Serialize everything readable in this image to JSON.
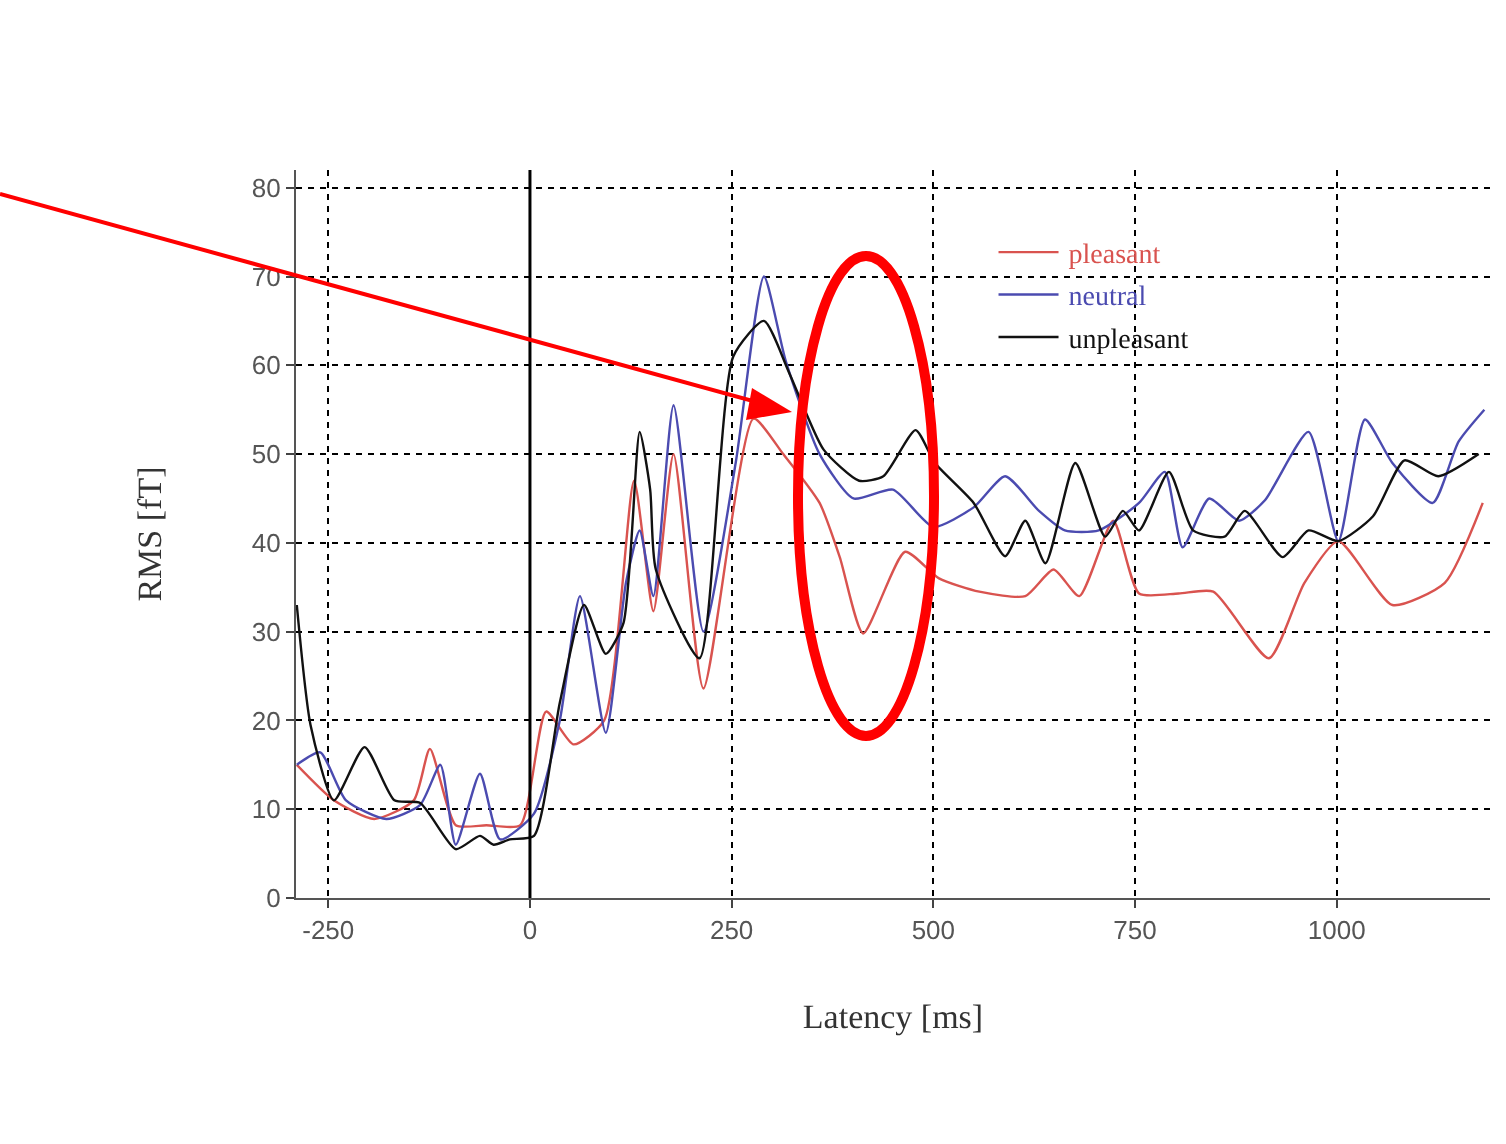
{
  "chart_data": {
    "type": "line",
    "xlabel": "Latency [ms]",
    "ylabel": "RMS [fT]",
    "xlim": [
      -290,
      1190
    ],
    "ylim": [
      0,
      82
    ],
    "xticks": [
      -250,
      0,
      250,
      500,
      750,
      1000
    ],
    "yticks": [
      0,
      10,
      20,
      30,
      40,
      50,
      60,
      70,
      80
    ],
    "grid": true,
    "legend": "top right",
    "line_style": "solid",
    "marker": "none",
    "ref_lines": [
      {
        "axis": "x",
        "value": 0,
        "color": "#000000"
      }
    ],
    "series": [
      {
        "name": "pleasant",
        "color": "#d9534f",
        "x": [
          -289,
          -243,
          -193,
          -144,
          -124,
          -92,
          -54,
          -12,
          20,
          54,
          92,
          129,
          153,
          178,
          215,
          277,
          314,
          359,
          384,
          413,
          465,
          507,
          557,
          614,
          649,
          681,
          723,
          755,
          804,
          847,
          916,
          960,
          1002,
          1069,
          1134,
          1181
        ],
        "values": [
          15,
          11,
          8.9,
          11,
          16.8,
          8.2,
          8.2,
          8.2,
          21,
          17.3,
          20,
          47,
          32.3,
          50,
          23.6,
          54,
          50,
          44.5,
          38.4,
          29.8,
          39,
          36,
          34.5,
          34,
          37,
          34,
          42.5,
          34.3,
          34.3,
          34.5,
          27,
          35.5,
          40.2,
          33,
          35.5,
          44.5
        ]
      },
      {
        "name": "neutral",
        "color": "#4b4bb0",
        "x": [
          -289,
          -260,
          -228,
          -178,
          -136,
          -111,
          -92,
          -62,
          -37,
          5,
          37,
          62,
          94,
          119,
          136,
          153,
          178,
          215,
          255,
          290,
          317,
          359,
          401,
          450,
          500,
          550,
          589,
          631,
          663,
          705,
          755,
          787,
          809,
          842,
          879,
          911,
          965,
          1002,
          1035,
          1069,
          1119,
          1151,
          1183
        ],
        "values": [
          15,
          16.4,
          11,
          8.9,
          10.5,
          15,
          6,
          14,
          6.6,
          9.5,
          20,
          34,
          18.6,
          35.5,
          41.4,
          34,
          55.5,
          30,
          49,
          70,
          60.5,
          50,
          45,
          46,
          41.8,
          44,
          47.5,
          43.6,
          41.4,
          41.4,
          44.5,
          48,
          39.5,
          45,
          42.5,
          44.8,
          52.5,
          40.2,
          53.9,
          49,
          44.5,
          51.4,
          55
        ]
      },
      {
        "name": "unpleasant",
        "color": "#111111",
        "x": [
          -289,
          -272,
          -243,
          -205,
          -168,
          -136,
          -92,
          -62,
          -45,
          -25,
          5,
          37,
          67,
          94,
          116,
          136,
          149,
          156,
          210,
          252,
          290,
          322,
          364,
          408,
          438,
          478,
          502,
          550,
          589,
          614,
          639,
          676,
          713,
          735,
          755,
          792,
          822,
          861,
          886,
          933,
          965,
          1002,
          1045,
          1084,
          1126,
          1176
        ],
        "values": [
          33,
          19.5,
          11,
          17,
          11,
          10.7,
          5.5,
          7,
          6,
          6.6,
          7,
          22,
          33,
          27.5,
          31,
          52.5,
          46,
          37,
          27,
          61,
          65,
          59,
          50.5,
          47,
          47.5,
          52.7,
          49,
          44.5,
          38.5,
          42.5,
          37.7,
          49,
          40.7,
          43.6,
          41.4,
          48,
          41.4,
          40.7,
          43.6,
          38.4,
          41.4,
          40.2,
          43,
          49.3,
          47.5,
          50
        ]
      }
    ]
  }
}
